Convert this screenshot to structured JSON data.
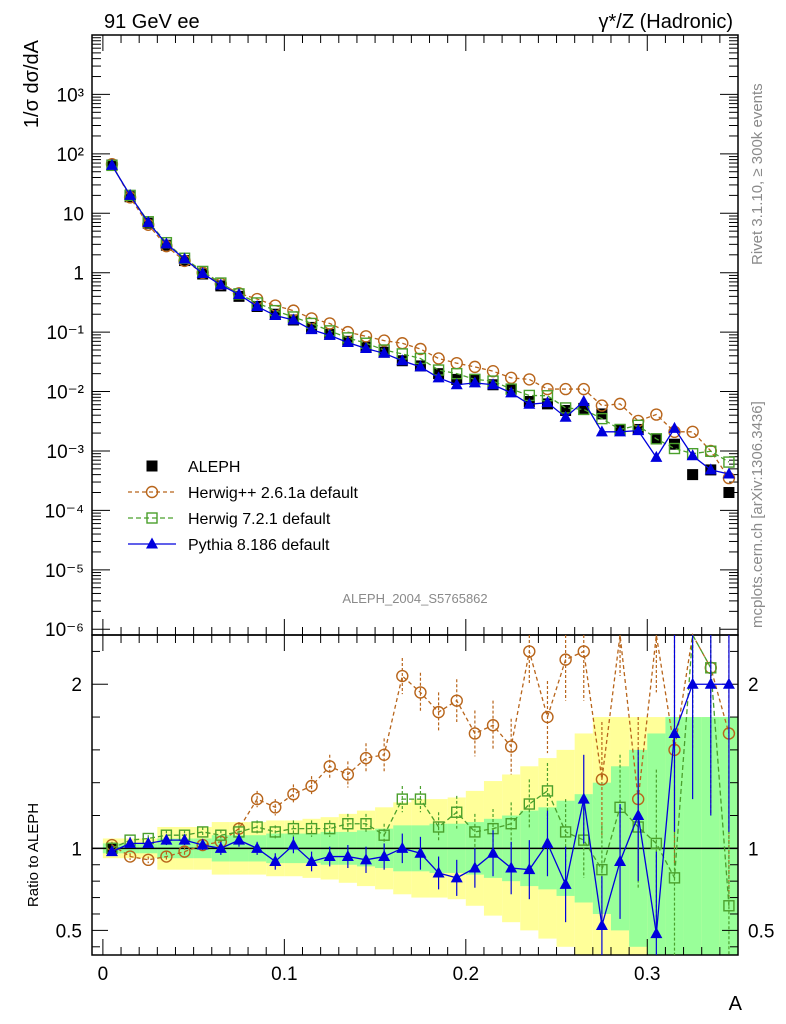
{
  "header": {
    "left": "91 GeV ee",
    "right": "γ*/Z (Hadronic)"
  },
  "side_text": {
    "top": "Rivet 3.1.10, ≥ 300k events",
    "bottom": "mcplots.cern.ch [arXiv:1306.3436]"
  },
  "analysis_label": "ALEPH_2004_S5765862",
  "colors": {
    "data": "#000000",
    "herwigpp": "#b8651b",
    "herwig7": "#4aa02c",
    "pythia": "#0000dd",
    "band_yellow": "#ffff99",
    "band_green": "#99ff99"
  },
  "chart_data": [
    {
      "type": "line",
      "panel": "main",
      "yscale": "log",
      "ylabel": "1/σ  dσ/dA",
      "xlim": [
        -0.006,
        0.35
      ],
      "ylim": [
        8e-07,
        10000
      ],
      "ytick_labels": [
        "10⁻⁶",
        "10⁻⁵",
        "10⁻⁴",
        "10⁻³",
        "10⁻²",
        "10⁻¹",
        "1",
        "10",
        "10²",
        "10³"
      ],
      "legend_position": "lower-left",
      "x": [
        0.005,
        0.015,
        0.025,
        0.035,
        0.045,
        0.055,
        0.065,
        0.075,
        0.085,
        0.095,
        0.105,
        0.115,
        0.125,
        0.135,
        0.145,
        0.155,
        0.165,
        0.175,
        0.185,
        0.195,
        0.205,
        0.215,
        0.225,
        0.235,
        0.245,
        0.255,
        0.265,
        0.275,
        0.285,
        0.295,
        0.305,
        0.315,
        0.325,
        0.335,
        0.345
      ],
      "series": [
        {
          "name": "ALEPH",
          "key": "data",
          "values": [
            65,
            19,
            6.8,
            2.9,
            1.6,
            0.95,
            0.6,
            0.4,
            0.27,
            0.2,
            0.16,
            0.12,
            0.092,
            0.07,
            0.056,
            0.046,
            0.033,
            0.027,
            0.02,
            0.016,
            0.016,
            0.013,
            0.011,
            0.0068,
            0.0062,
            0.0048,
            0.0052,
            0.0042,
            0.0023,
            0.0023,
            0.0016,
            0.0013,
            0.0004,
            0.00048,
            0.0002
          ]
        },
        {
          "name": "Herwig++ 2.6.1a default",
          "key": "herwigpp",
          "values": [
            67,
            18.5,
            6.4,
            2.8,
            1.58,
            1.0,
            0.65,
            0.45,
            0.36,
            0.28,
            0.23,
            0.17,
            0.14,
            0.1,
            0.085,
            0.072,
            0.065,
            0.052,
            0.036,
            0.03,
            0.026,
            0.022,
            0.017,
            0.016,
            0.011,
            0.011,
            0.011,
            0.0058,
            0.0062,
            0.0032,
            0.0041,
            0.0021,
            0.0021,
            0.001,
            0.00035
          ]
        },
        {
          "name": "Herwig 7.2.1 default",
          "key": "herwig7",
          "values": [
            64,
            20,
            7.2,
            3.2,
            1.75,
            1.05,
            0.67,
            0.44,
            0.31,
            0.23,
            0.18,
            0.14,
            0.105,
            0.08,
            0.065,
            0.05,
            0.043,
            0.036,
            0.023,
            0.02,
            0.016,
            0.015,
            0.011,
            0.0086,
            0.0085,
            0.0053,
            0.005,
            0.0035,
            0.0023,
            0.0027,
            0.0016,
            0.0011,
            0.0009,
            0.00099,
            0.00065
          ]
        },
        {
          "name": "Pythia 8.186 default",
          "key": "pythia",
          "values": [
            64,
            20,
            7.0,
            3.05,
            1.7,
            0.97,
            0.62,
            0.43,
            0.27,
            0.19,
            0.16,
            0.11,
            0.088,
            0.067,
            0.053,
            0.044,
            0.033,
            0.026,
            0.017,
            0.013,
            0.014,
            0.013,
            0.0095,
            0.0061,
            0.0065,
            0.0037,
            0.0068,
            0.0021,
            0.0021,
            0.0022,
            0.00078,
            0.0024,
            0.00083,
            0.00048,
            0.00041
          ]
        }
      ]
    },
    {
      "type": "line",
      "panel": "ratio",
      "ylabel": "Ratio to ALEPH",
      "xlabel": "A",
      "xlim": [
        -0.006,
        0.35
      ],
      "ylim": [
        0.35,
        2.3
      ],
      "x_ticks": [
        0,
        0.1,
        0.2,
        0.3
      ],
      "x_tick_labels": [
        "0",
        "0.1",
        "0.2",
        "0.3"
      ],
      "y_ticks": [
        0.5,
        1,
        2
      ],
      "y_tick_labels": [
        "0.5",
        "1",
        "2"
      ],
      "reference_line": 1,
      "band_yellow": [
        0.06,
        0.06,
        0.06,
        0.13,
        0.13,
        0.13,
        0.16,
        0.16,
        0.16,
        0.17,
        0.17,
        0.18,
        0.19,
        0.21,
        0.23,
        0.25,
        0.28,
        0.3,
        0.3,
        0.31,
        0.35,
        0.41,
        0.45,
        0.5,
        0.55,
        0.6,
        0.7,
        0.8,
        0.8,
        0.8,
        0.8,
        0.8,
        0.8,
        0.8,
        0.8
      ],
      "band_green": [
        0.03,
        0.03,
        0.03,
        0.06,
        0.06,
        0.06,
        0.08,
        0.08,
        0.08,
        0.09,
        0.09,
        0.09,
        0.1,
        0.1,
        0.11,
        0.12,
        0.14,
        0.14,
        0.15,
        0.15,
        0.16,
        0.18,
        0.2,
        0.23,
        0.25,
        0.29,
        0.33,
        0.4,
        0.5,
        0.6,
        0.7,
        0.8,
        0.8,
        0.8,
        0.8
      ],
      "series": [
        {
          "name": "Herwig++ 2.6.1a default",
          "key": "herwigpp",
          "values": [
            1.02,
            0.95,
            0.93,
            0.95,
            0.98,
            1.02,
            1.04,
            1.12,
            1.3,
            1.25,
            1.33,
            1.38,
            1.5,
            1.45,
            1.55,
            1.57,
            2.05,
            1.95,
            1.83,
            1.9,
            1.7,
            1.75,
            1.62,
            2.2,
            1.8,
            2.15,
            2.2,
            1.42,
            2.5,
            1.3,
            2.55,
            1.6,
            2.4,
            2.1,
            1.7
          ],
          "errors": [
            0.02,
            0.02,
            0.02,
            0.03,
            0.03,
            0.03,
            0.04,
            0.04,
            0.05,
            0.05,
            0.06,
            0.06,
            0.07,
            0.08,
            0.09,
            0.1,
            0.11,
            0.12,
            0.12,
            0.13,
            0.14,
            0.15,
            0.17,
            0.2,
            0.22,
            0.25,
            0.3,
            0.35,
            0.45,
            0.5,
            0.6,
            0.7,
            0.8,
            0.9,
            1.0
          ]
        },
        {
          "name": "Herwig 7.2.1 default",
          "key": "herwig7",
          "values": [
            1.0,
            1.05,
            1.06,
            1.08,
            1.08,
            1.1,
            1.08,
            1.1,
            1.13,
            1.1,
            1.12,
            1.12,
            1.12,
            1.15,
            1.15,
            1.08,
            1.3,
            1.3,
            1.13,
            1.22,
            1.1,
            1.12,
            1.15,
            1.27,
            1.35,
            1.1,
            1.05,
            0.87,
            1.25,
            1.13,
            1.03,
            0.82,
            2.35,
            2.1,
            0.65
          ],
          "errors": [
            0.02,
            0.02,
            0.02,
            0.03,
            0.03,
            0.03,
            0.03,
            0.04,
            0.04,
            0.04,
            0.05,
            0.05,
            0.05,
            0.06,
            0.06,
            0.07,
            0.08,
            0.08,
            0.09,
            0.1,
            0.11,
            0.12,
            0.13,
            0.15,
            0.17,
            0.2,
            0.23,
            0.27,
            0.32,
            0.38,
            0.45,
            0.55,
            0.65,
            0.75,
            0.85
          ]
        },
        {
          "name": "Pythia 8.186 default",
          "key": "pythia",
          "values": [
            0.98,
            1.03,
            1.03,
            1.05,
            1.05,
            1.02,
            1.0,
            1.05,
            1.0,
            0.92,
            1.02,
            0.92,
            0.95,
            0.95,
            0.93,
            0.95,
            1.0,
            0.97,
            0.85,
            0.82,
            0.88,
            0.97,
            0.88,
            0.87,
            1.03,
            0.78,
            1.3,
            0.53,
            0.92,
            1.2,
            0.48,
            1.7,
            2.0,
            2.0,
            2.0
          ],
          "errors": [
            0.02,
            0.02,
            0.02,
            0.03,
            0.03,
            0.03,
            0.04,
            0.04,
            0.04,
            0.05,
            0.05,
            0.06,
            0.06,
            0.07,
            0.08,
            0.08,
            0.09,
            0.1,
            0.1,
            0.11,
            0.12,
            0.14,
            0.16,
            0.18,
            0.2,
            0.23,
            0.27,
            0.3,
            0.35,
            0.4,
            0.5,
            0.6,
            0.7,
            0.8,
            0.9
          ]
        }
      ]
    }
  ]
}
